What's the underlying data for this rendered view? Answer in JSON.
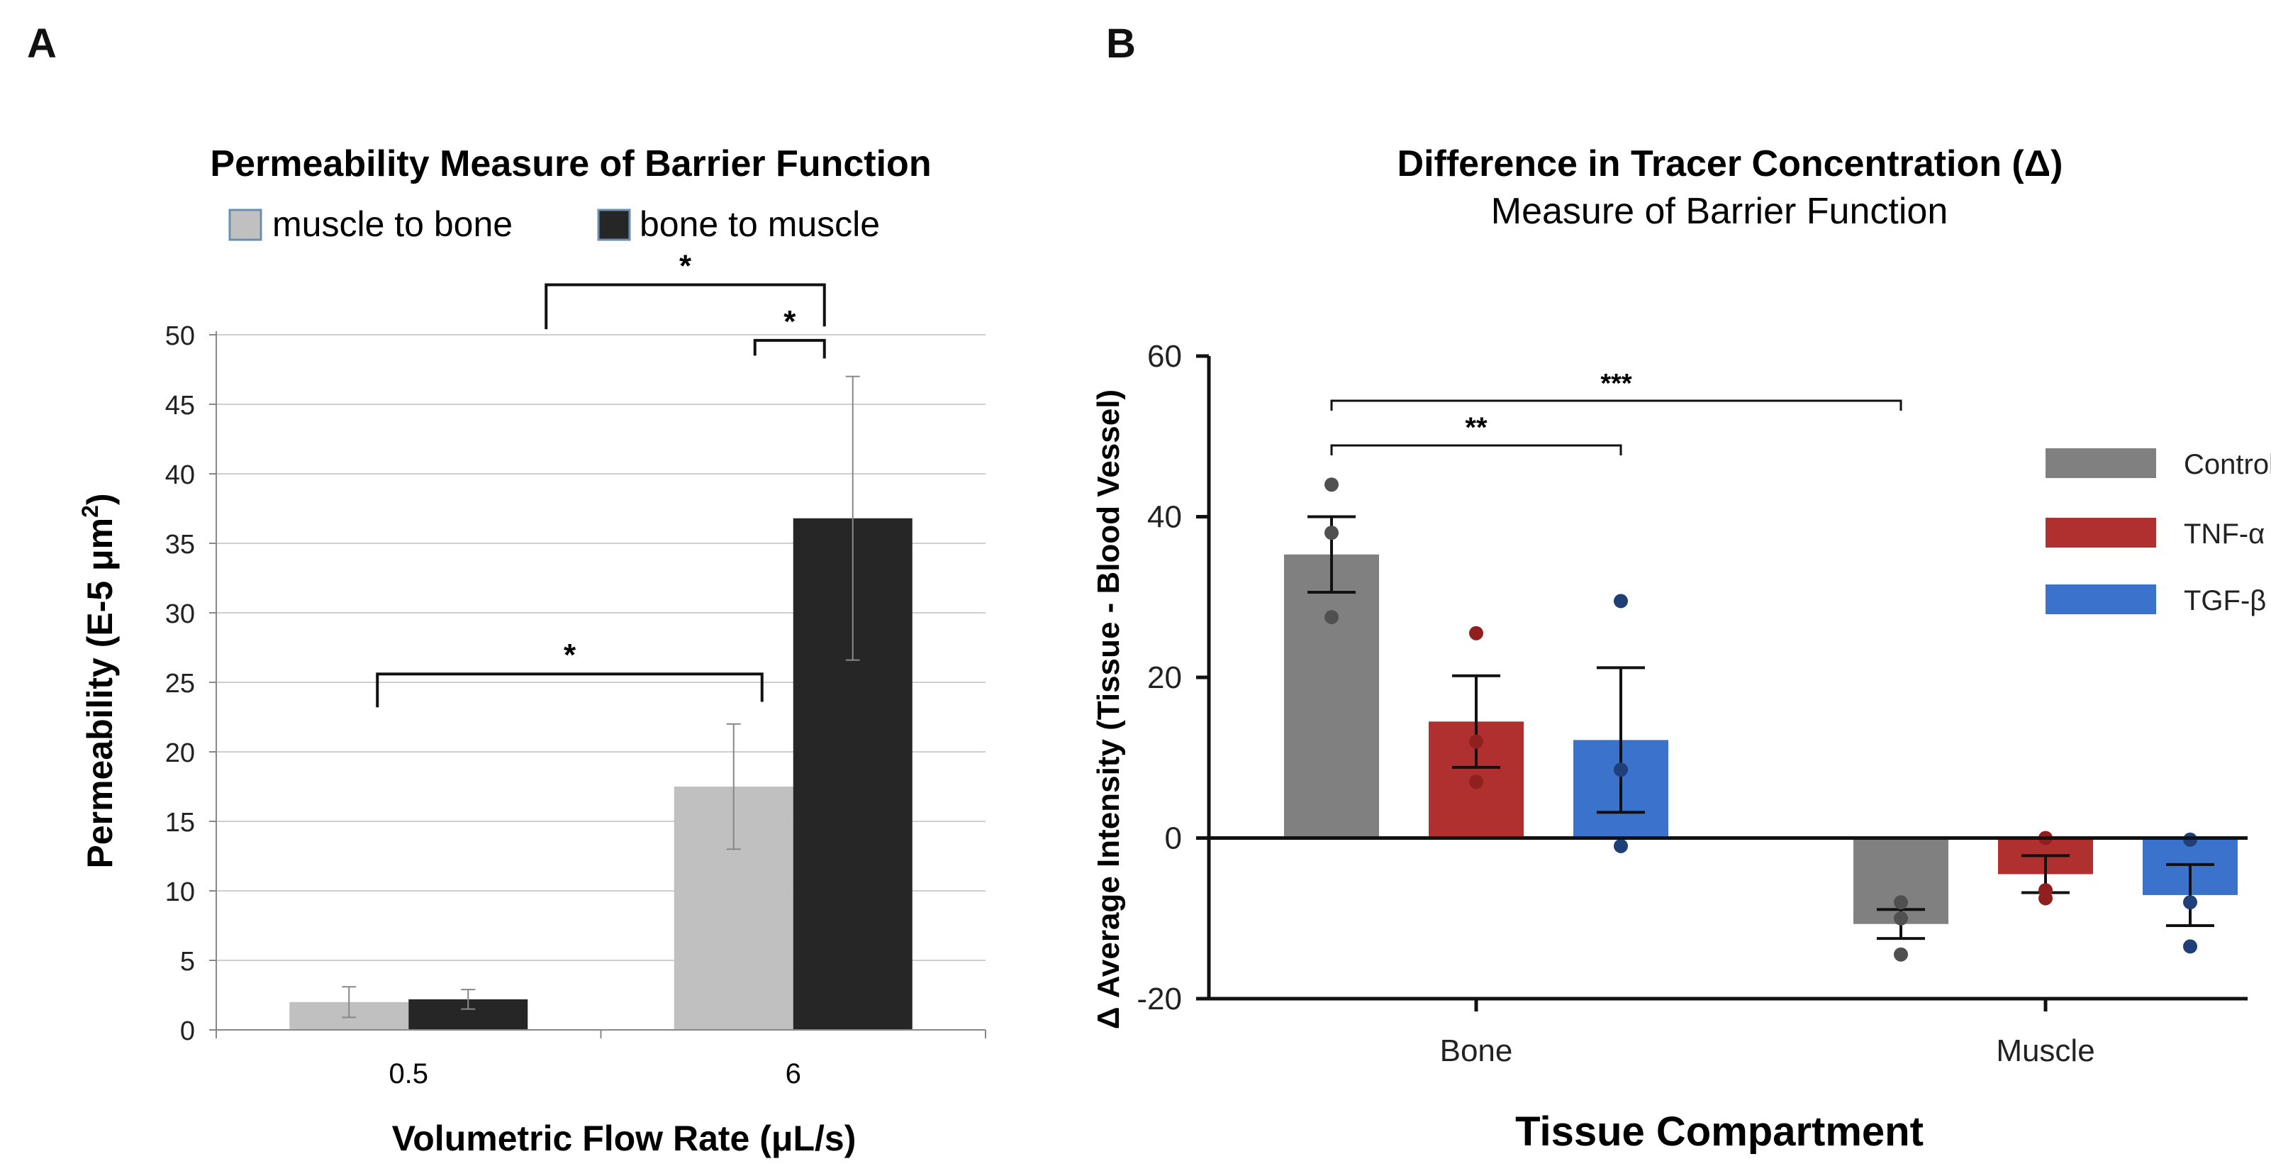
{
  "panels": {
    "a_label": "A",
    "b_label": "B"
  },
  "chart_data": [
    {
      "type": "bar",
      "title": "Permeability Measure of Barrier Function",
      "xlabel": "Volumetric Flow Rate (μL/s)",
      "ylabel_main": "Permeability (E-5 μm",
      "ylabel_sup": "2",
      "ylabel_close": ")",
      "categories": [
        "0.5",
        "6"
      ],
      "series": [
        {
          "name": "muscle to bone",
          "color": "#c0c0c0",
          "values": [
            2.0,
            17.5
          ],
          "errors": [
            1.1,
            4.5
          ]
        },
        {
          "name": "bone to muscle",
          "color": "#262626",
          "values": [
            2.2,
            36.8
          ],
          "errors": [
            0.7,
            10.2
          ]
        }
      ],
      "ylim": [
        0,
        50
      ],
      "yticks": [
        "0",
        "5",
        "10",
        "15",
        "20",
        "25",
        "30",
        "35",
        "40",
        "45",
        "50"
      ],
      "grid": true,
      "legend": "top",
      "significance": [
        {
          "label": "*",
          "from": "0.5 muscle to bone",
          "to": "6 muscle to bone"
        },
        {
          "label": "*",
          "from": "6 muscle to bone",
          "to": "6 bone to muscle"
        },
        {
          "label": "*",
          "from": "0.5 bone to muscle",
          "to": "6 bone to muscle"
        }
      ]
    },
    {
      "type": "bar",
      "title": "Difference in Tracer Concentration (Δ)",
      "subtitle": "Measure of Barrier Function",
      "xlabel": "Tissue Compartment",
      "ylabel": "Δ Average Intensity (Tissue - Blood Vessel)",
      "categories": [
        "Bone",
        "Muscle"
      ],
      "series": [
        {
          "name": "Control",
          "color": "#808080",
          "values": [
            35.3,
            -10.7
          ],
          "sem": [
            4.7,
            1.8
          ],
          "points": [
            [
              44,
              38,
              27.5
            ],
            [
              -8,
              -14.5,
              -10
            ]
          ]
        },
        {
          "name": "TNF-α",
          "color": "#b03030",
          "values": [
            14.5,
            -4.5
          ],
          "sem": [
            5.7,
            2.3
          ],
          "points": [
            [
              25.5,
              12,
              7
            ],
            [
              0,
              -7.5,
              -6.5
            ]
          ]
        },
        {
          "name": "TGF-β",
          "color": "#3a72cc",
          "values": [
            12.2,
            -7.1
          ],
          "sem": [
            9.0,
            3.8
          ],
          "points": [
            [
              29.5,
              8.5,
              -1
            ],
            [
              -0.2,
              -8,
              -13.5
            ]
          ]
        }
      ],
      "ylim": [
        -20,
        60
      ],
      "yticks": [
        "-20",
        "0",
        "20",
        "40",
        "60"
      ],
      "grid": false,
      "legend": "right",
      "significance": [
        {
          "label": "***",
          "from": "Bone Control",
          "to": "Muscle Control"
        },
        {
          "label": "**",
          "from": "Bone Control",
          "to": "Bone TGF-β"
        }
      ]
    }
  ]
}
